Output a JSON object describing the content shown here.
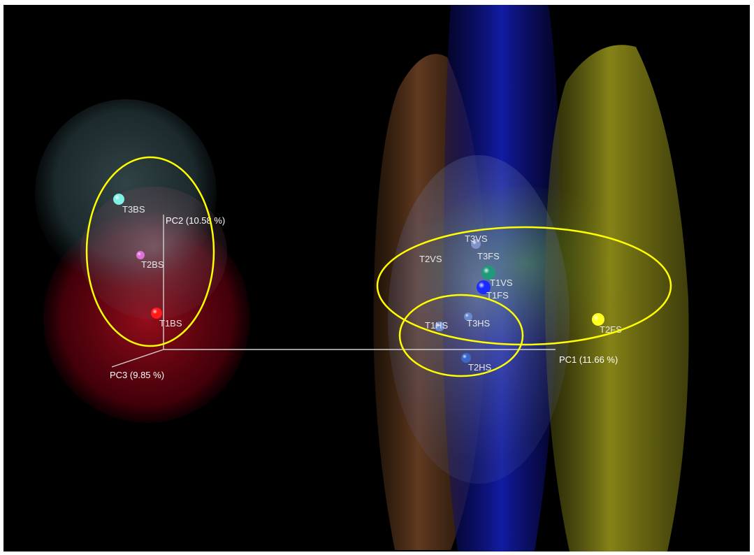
{
  "chart_data": {
    "type": "scatter",
    "projection": "3d-pca",
    "axes": {
      "pc1": "PC1 (11.66 %)",
      "pc2": "PC2 (10.58 %)",
      "pc3": "PC3 (9.85 %)"
    },
    "points": [
      {
        "label": "T3BS",
        "color": "#7ff0e6"
      },
      {
        "label": "T2BS",
        "color": "#e070d8"
      },
      {
        "label": "T1BS",
        "color": "#ff1a1a"
      },
      {
        "label": "T3VS",
        "color": "#8090c8"
      },
      {
        "label": "T2VS",
        "color": "#a0a0d0"
      },
      {
        "label": "T3FS",
        "color": "#8090c8"
      },
      {
        "label": "T1VS",
        "color": "#1e9b7a"
      },
      {
        "label": "T1FS",
        "color": "#1a2cff"
      },
      {
        "label": "T1HS",
        "color": "#6a8ad0"
      },
      {
        "label": "T3HS",
        "color": "#6a8ad0"
      },
      {
        "label": "T2HS",
        "color": "#3a68c8"
      },
      {
        "label": "T2FS",
        "color": "#ffff20"
      }
    ],
    "highlight_color": "#ffff00"
  }
}
